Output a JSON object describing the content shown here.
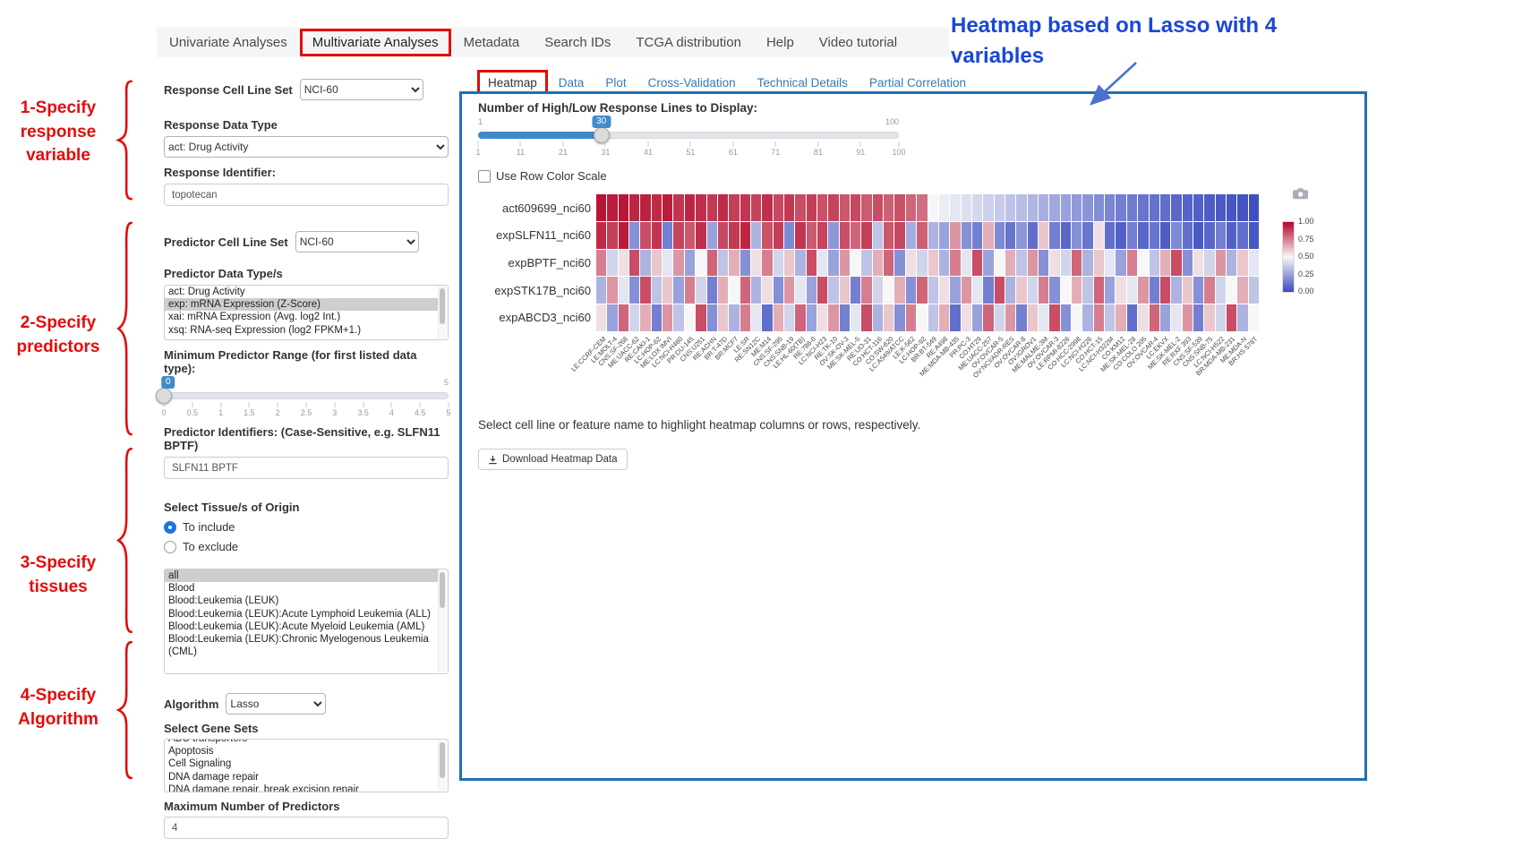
{
  "nav": {
    "items": [
      "Univariate Analyses",
      "Multivariate Analyses",
      "Metadata",
      "Search IDs",
      "TCGA distribution",
      "Help",
      "Video tutorial"
    ],
    "active": "Multivariate Analyses"
  },
  "annotations": {
    "steps": [
      "1-Specify\nresponse\nvariable",
      "2-Specify\npredictors",
      "3-Specify\ntissues",
      "4-Specify\nAlgorithm"
    ],
    "heatmap_note": "Heatmap based on Lasso with 4 variables",
    "red_color": "#e40b0b",
    "blue_color": "#1a46d8",
    "panel_border_color": "#1d70b8"
  },
  "sidebar": {
    "response_cell_line_set": {
      "label": "Response Cell Line Set",
      "value": "NCI-60"
    },
    "response_data_type": {
      "label": "Response Data Type",
      "value": "act: Drug Activity"
    },
    "response_identifier": {
      "label": "Response Identifier:",
      "value": "topotecan"
    },
    "predictor_cell_line_set": {
      "label": "Predictor Cell Line Set",
      "value": "NCI-60"
    },
    "predictor_data_types": {
      "label": "Predictor Data Type/s",
      "options": [
        "act: Drug Activity",
        "exp: mRNA Expression (Z-Score)",
        "xai: mRNA Expression (Avg. log2 Int.)",
        "xsq: RNA-seq Expression (log2 FPKM+1.)"
      ],
      "selected": "exp: mRNA Expression (Z-Score)"
    },
    "min_predictor_range": {
      "label": "Minimum Predictor Range (for first listed data type):",
      "value": 0,
      "min": 0,
      "max": 5,
      "ticks": [
        "0",
        "0.5",
        "1",
        "1.5",
        "2",
        "2.5",
        "3",
        "3.5",
        "4",
        "4.5",
        "5"
      ]
    },
    "predictor_identifiers": {
      "label": "Predictor Identifiers: (Case-Sensitive, e.g. SLFN11 BPTF)",
      "value": "SLFN11 BPTF"
    },
    "tissues": {
      "label": "Select Tissue/s of Origin",
      "radios": [
        "To include",
        "To exclude"
      ],
      "selected_radio": "To include",
      "options": [
        "all",
        "Blood",
        "Blood:Leukemia (LEUK)",
        "Blood:Leukemia (LEUK):Acute Lymphoid Leukemia (ALL)",
        "Blood:Leukemia (LEUK):Acute Myeloid Leukemia (AML)",
        "Blood:Leukemia (LEUK):Chronic Myelogenous Leukemia (CML)"
      ],
      "selected": "all"
    },
    "algorithm": {
      "label": "Algorithm",
      "value": "Lasso"
    },
    "gene_sets": {
      "label": "Select Gene Sets",
      "options": [
        "ABC transporters",
        "Apoptosis",
        "Cell Signaling",
        "DNA damage repair",
        "DNA damage repair, break excision repair"
      ]
    },
    "max_predictors": {
      "label": "Maximum Number of Predictors",
      "value": "4"
    }
  },
  "main": {
    "tabs": [
      "Heatmap",
      "Data",
      "Plot",
      "Cross-Validation",
      "Technical Details",
      "Partial Correlation"
    ],
    "active_tab": "Heatmap",
    "slider": {
      "label": "Number of High/Low Response Lines to Display:",
      "value": 30,
      "min": 1,
      "max": 100,
      "ticks": [
        "1",
        "11",
        "21",
        "31",
        "41",
        "51",
        "61",
        "71",
        "81",
        "91",
        "100"
      ]
    },
    "row_color_scale_label": "Use Row Color Scale",
    "hint": "Select cell line or feature name to highlight heatmap columns or rows, respectively.",
    "download_button": "Download Heatmap Data"
  },
  "chart_data": {
    "type": "heatmap",
    "rows": [
      "act609699_nci60",
      "expSLFN11_nci60",
      "expBPTF_nci60",
      "expSTK17B_nci60",
      "expABCD3_nci60"
    ],
    "columns": [
      "LE:CCRF-CEM",
      "LE:MOLT-4",
      "CNS:SF-268",
      "ME:UACC-62",
      "RE:CAKI-1",
      "LC:HOP-62",
      "ME:LOX IMVI",
      "LC:NCI-H460",
      "PR:DU-145",
      "CNS:U251",
      "RE:ACHN",
      "BR:T-47D",
      "BR:MCF7",
      "LE:SR",
      "RE:SN12C",
      "ME:M14",
      "CNS:SF-295",
      "CNS:SNB-19",
      "LE:HL-60(TB)",
      "RE:786-0",
      "LC:NCI-H23",
      "RE:TK-10",
      "OV:SK-OV-3",
      "ME:SK-MEL-5",
      "RE:UO-31",
      "CO:HCT-116",
      "CO:SW-620",
      "LC:A549/ATCC",
      "LE:K-562",
      "LC:HOP-92",
      "BR:BT-549",
      "RE:A498",
      "ME:MDA-MB-435",
      "PR:PC-3",
      "CO:HT29",
      "ME:UACC-257",
      "OV:OVCAR-5",
      "OV:NCI/ADR-RES",
      "OV:OVCAR-8",
      "OV:IGROV1",
      "ME:MALME-3M",
      "OV:OVCAR-3",
      "LE:RPMI-8226",
      "CO:HCC-2998",
      "LC:NCI-H226",
      "CO:HCT-15",
      "LC:NCI-H322M",
      "CO:KM12",
      "ME:SK-MEL-28",
      "CO:COLO 205",
      "OV:OVCAR-4",
      "LC:EKVX",
      "ME:SK-MEL-2",
      "RE:RXF 393",
      "CNS:SF-539",
      "CNS:SNB-75",
      "LC:NCI-H522",
      "BR:MDA-MB-231",
      "ME:MDA-N",
      "BR:HS 578T"
    ],
    "values": [
      [
        0.97,
        0.95,
        0.96,
        0.93,
        0.94,
        0.92,
        0.95,
        0.9,
        0.93,
        0.91,
        0.89,
        0.92,
        0.88,
        0.9,
        0.87,
        0.91,
        0.86,
        0.89,
        0.85,
        0.88,
        0.84,
        0.87,
        0.83,
        0.86,
        0.82,
        0.85,
        0.81,
        0.84,
        0.8,
        0.78,
        0.5,
        0.47,
        0.45,
        0.43,
        0.41,
        0.39,
        0.37,
        0.35,
        0.33,
        0.31,
        0.29,
        0.27,
        0.25,
        0.23,
        0.21,
        0.19,
        0.17,
        0.15,
        0.14,
        0.12,
        0.11,
        0.1,
        0.08,
        0.07,
        0.06,
        0.05,
        0.04,
        0.03,
        0.02,
        0.01
      ],
      [
        0.92,
        0.88,
        0.95,
        0.2,
        0.85,
        0.9,
        0.15,
        0.87,
        0.83,
        0.91,
        0.25,
        0.86,
        0.89,
        0.93,
        0.3,
        0.84,
        0.88,
        0.18,
        0.9,
        0.82,
        0.87,
        0.22,
        0.85,
        0.8,
        0.88,
        0.35,
        0.83,
        0.86,
        0.28,
        0.81,
        0.3,
        0.25,
        0.7,
        0.2,
        0.15,
        0.65,
        0.18,
        0.12,
        0.22,
        0.1,
        0.6,
        0.15,
        0.08,
        0.2,
        0.12,
        0.55,
        0.1,
        0.06,
        0.15,
        0.08,
        0.12,
        0.05,
        0.18,
        0.1,
        0.04,
        0.08,
        0.15,
        0.06,
        0.1,
        0.03
      ],
      [
        0.75,
        0.4,
        0.55,
        0.85,
        0.3,
        0.6,
        0.45,
        0.7,
        0.25,
        0.5,
        0.8,
        0.35,
        0.65,
        0.2,
        0.55,
        0.75,
        0.4,
        0.6,
        0.3,
        0.85,
        0.45,
        0.25,
        0.7,
        0.5,
        0.35,
        0.65,
        0.8,
        0.2,
        0.55,
        0.4,
        0.6,
        0.3,
        0.75,
        0.45,
        0.85,
        0.25,
        0.5,
        0.65,
        0.35,
        0.7,
        0.2,
        0.55,
        0.4,
        0.8,
        0.3,
        0.6,
        0.45,
        0.25,
        0.75,
        0.5,
        0.35,
        0.65,
        0.85,
        0.2,
        0.55,
        0.4,
        0.7,
        0.3,
        0.6,
        0.45
      ],
      [
        0.3,
        0.7,
        0.45,
        0.2,
        0.85,
        0.35,
        0.6,
        0.25,
        0.75,
        0.4,
        0.15,
        0.65,
        0.5,
        0.8,
        0.3,
        0.55,
        0.2,
        0.7,
        0.45,
        0.25,
        0.85,
        0.35,
        0.6,
        0.15,
        0.75,
        0.4,
        0.5,
        0.65,
        0.2,
        0.8,
        0.35,
        0.55,
        0.25,
        0.7,
        0.45,
        0.15,
        0.85,
        0.3,
        0.6,
        0.4,
        0.75,
        0.2,
        0.5,
        0.65,
        0.35,
        0.8,
        0.25,
        0.55,
        0.45,
        0.7,
        0.15,
        0.85,
        0.3,
        0.6,
        0.2,
        0.75,
        0.4,
        0.5,
        0.65,
        0.35
      ],
      [
        0.55,
        0.25,
        0.8,
        0.4,
        0.65,
        0.15,
        0.7,
        0.35,
        0.5,
        0.85,
        0.2,
        0.6,
        0.3,
        0.75,
        0.45,
        0.1,
        0.65,
        0.4,
        0.8,
        0.25,
        0.55,
        0.7,
        0.15,
        0.45,
        0.85,
        0.3,
        0.6,
        0.2,
        0.75,
        0.5,
        0.35,
        0.65,
        0.1,
        0.55,
        0.25,
        0.8,
        0.4,
        0.7,
        0.15,
        0.6,
        0.45,
        0.85,
        0.2,
        0.5,
        0.3,
        0.75,
        0.35,
        0.65,
        0.1,
        0.55,
        0.8,
        0.25,
        0.45,
        0.7,
        0.15,
        0.6,
        0.4,
        0.85,
        0.3,
        0.5
      ]
    ],
    "value_range": [
      0,
      1
    ],
    "colorbar_ticks": [
      "1.00",
      "0.75",
      "0.50",
      "0.25",
      "0.00"
    ],
    "colors": {
      "high": "#b40426",
      "mid": "#f7f7f7",
      "low": "#3b4cc0"
    },
    "legend_position": "right",
    "xlabel": "",
    "ylabel": ""
  }
}
